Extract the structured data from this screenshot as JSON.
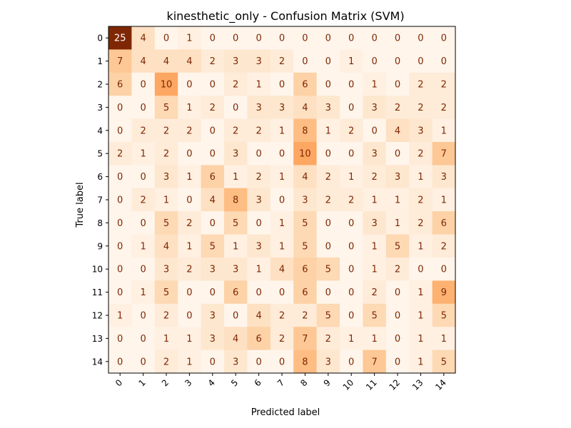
{
  "chart_data": {
    "type": "heatmap",
    "title": "kinesthetic_only - Confusion Matrix (SVM)",
    "xlabel": "Predicted label",
    "ylabel": "True label",
    "x_tick_labels": [
      "0",
      "1",
      "2",
      "3",
      "4",
      "5",
      "6",
      "7",
      "8",
      "9",
      "10",
      "11",
      "12",
      "13",
      "14"
    ],
    "y_tick_labels": [
      "0",
      "1",
      "2",
      "3",
      "4",
      "5",
      "6",
      "7",
      "8",
      "9",
      "10",
      "11",
      "12",
      "13",
      "14"
    ],
    "colormap": "Oranges",
    "value_range": [
      0,
      25
    ],
    "matrix": [
      [
        25,
        4,
        0,
        1,
        0,
        0,
        0,
        0,
        0,
        0,
        0,
        0,
        0,
        0,
        0
      ],
      [
        7,
        4,
        4,
        4,
        2,
        3,
        3,
        2,
        0,
        0,
        1,
        0,
        0,
        0,
        0
      ],
      [
        6,
        0,
        10,
        0,
        0,
        2,
        1,
        0,
        6,
        0,
        0,
        1,
        0,
        2,
        2
      ],
      [
        0,
        0,
        5,
        1,
        2,
        0,
        3,
        3,
        4,
        3,
        0,
        3,
        2,
        2,
        2
      ],
      [
        0,
        2,
        2,
        2,
        0,
        2,
        2,
        1,
        8,
        1,
        2,
        0,
        4,
        3,
        1
      ],
      [
        2,
        1,
        2,
        0,
        0,
        3,
        0,
        0,
        10,
        0,
        0,
        3,
        0,
        2,
        7
      ],
      [
        0,
        0,
        3,
        1,
        6,
        1,
        2,
        1,
        4,
        2,
        1,
        2,
        3,
        1,
        3
      ],
      [
        0,
        2,
        1,
        0,
        4,
        8,
        3,
        0,
        3,
        2,
        2,
        1,
        1,
        2,
        1
      ],
      [
        0,
        0,
        5,
        2,
        0,
        5,
        0,
        1,
        5,
        0,
        0,
        3,
        1,
        2,
        6
      ],
      [
        0,
        1,
        4,
        1,
        5,
        1,
        3,
        1,
        5,
        0,
        0,
        1,
        5,
        1,
        2
      ],
      [
        0,
        0,
        3,
        2,
        3,
        3,
        1,
        4,
        6,
        5,
        0,
        1,
        2,
        0,
        0
      ],
      [
        0,
        1,
        5,
        0,
        0,
        6,
        0,
        0,
        6,
        0,
        0,
        2,
        0,
        1,
        9
      ],
      [
        1,
        0,
        2,
        0,
        3,
        0,
        4,
        2,
        2,
        5,
        0,
        5,
        0,
        1,
        5
      ],
      [
        0,
        0,
        1,
        1,
        3,
        4,
        6,
        2,
        7,
        2,
        1,
        1,
        0,
        1,
        1
      ],
      [
        0,
        0,
        2,
        1,
        0,
        3,
        0,
        0,
        8,
        3,
        0,
        7,
        0,
        1,
        5
      ]
    ]
  }
}
